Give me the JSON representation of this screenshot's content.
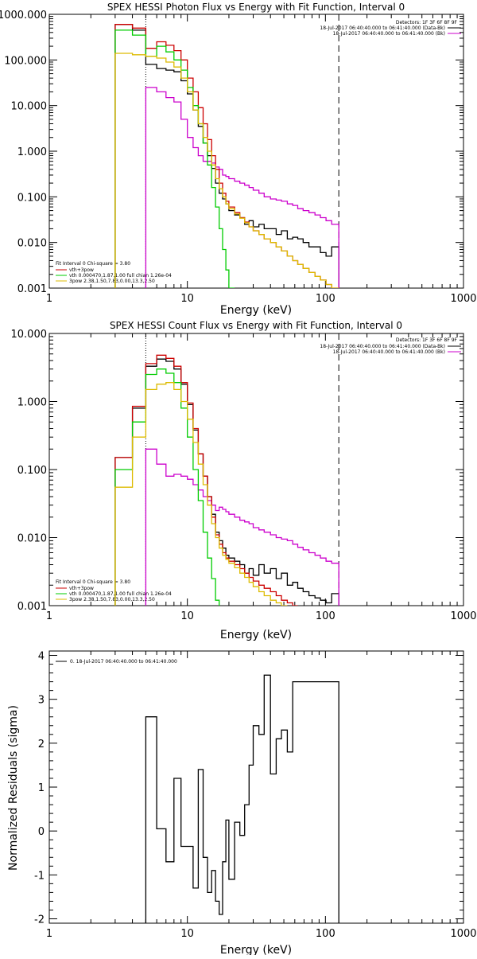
{
  "chart_data": [
    {
      "type": "line",
      "title": "SPEX HESSI Photon Flux vs Energy with Fit Function, Interval 0",
      "xlabel": "Energy (keV)",
      "ylabel": "",
      "xscale": "log",
      "yscale": "log",
      "xlim": [
        1,
        1000
      ],
      "ylim": [
        0.001,
        1000
      ],
      "x_ticks": [
        "1",
        "10",
        "100",
        "1000"
      ],
      "y_ticks": [
        "0.001",
        "0.010",
        "0.100",
        "1.000",
        "10.000",
        "100.000",
        "1000.000"
      ],
      "vlines": [
        {
          "x": 5,
          "style": "dotted"
        },
        {
          "x": 125,
          "style": "dashed"
        }
      ],
      "legend_top_right": [
        "Detectors: 1F 3F 6F 8F 9F",
        "18-Jul-2017 06:40:40.000 to 06:41:40.000 (Data-Bk)",
        "18-Jul-2017 06:40:40.000 to 06:41:40.000 (Bk)"
      ],
      "legend_bottom_left": [
        "Fit Interval 0   Chi-square = 3.80",
        "vth+3pow",
        "vth 0.000470,1.87,1.00  full chian 1.26e-04",
        "3pow 2.38,1.50,7.83,0.00,13.3,2.50"
      ],
      "bin_edges": [
        3,
        4,
        5,
        6,
        7,
        8,
        9,
        10,
        11,
        12,
        13,
        14,
        15,
        16,
        17,
        18,
        19,
        20,
        22,
        24,
        26,
        28,
        30,
        33,
        36,
        40,
        44,
        48,
        53,
        58,
        63,
        69,
        76,
        84,
        92,
        101,
        111,
        125
      ],
      "series": [
        {
          "name": "Data-Bk",
          "color": "#000000",
          "values": [
            600,
            450,
            80,
            65,
            60,
            55,
            35,
            18,
            8,
            3.5,
            1.5,
            0.8,
            0.42,
            0.2,
            0.12,
            0.09,
            0.07,
            0.05,
            0.04,
            0.035,
            0.025,
            0.03,
            0.022,
            0.025,
            0.02,
            0.02,
            0.015,
            0.018,
            0.012,
            0.013,
            0.012,
            0.01,
            0.008,
            0.008,
            0.006,
            0.005,
            0.008
          ]
        },
        {
          "name": "Bk",
          "color": "#cc00cc",
          "values": [
            null,
            null,
            25,
            20,
            15,
            12,
            5,
            2,
            1.2,
            0.8,
            0.6,
            0.6,
            0.55,
            0.45,
            0.4,
            0.3,
            0.28,
            0.25,
            0.22,
            0.2,
            0.18,
            0.16,
            0.14,
            0.12,
            0.1,
            0.09,
            0.085,
            0.08,
            0.07,
            0.065,
            0.055,
            0.05,
            0.045,
            0.04,
            0.035,
            0.03,
            0.025
          ]
        },
        {
          "name": "vth+3pow",
          "color": "#cc0000",
          "values": [
            600,
            500,
            180,
            250,
            210,
            160,
            100,
            40,
            20,
            9,
            4,
            1.8,
            0.8,
            0.4,
            0.2,
            0.12,
            0.08,
            0.06,
            0.045,
            0.035,
            0.028,
            0.022,
            0.018,
            0.015,
            0.012,
            0.01,
            0.008,
            0.0065,
            0.005,
            0.004,
            0.0033,
            0.0027,
            0.0022,
            0.0018,
            0.0015,
            0.0012,
            0.001
          ]
        },
        {
          "name": "vth",
          "color": "#00cc00",
          "values": [
            450,
            350,
            120,
            200,
            150,
            100,
            60,
            25,
            10,
            4,
            1.5,
            0.5,
            0.16,
            0.06,
            0.02,
            0.007,
            0.0025,
            0.001,
            null,
            null,
            null,
            null,
            null,
            null,
            null,
            null,
            null,
            null,
            null,
            null,
            null,
            null,
            null,
            null,
            null,
            null,
            null
          ]
        },
        {
          "name": "3pow",
          "color": "#ddbb00",
          "values": [
            140,
            130,
            120,
            110,
            90,
            70,
            40,
            20,
            8,
            4,
            2,
            1,
            0.5,
            0.25,
            0.15,
            0.1,
            0.07,
            0.055,
            0.042,
            0.034,
            0.027,
            0.022,
            0.018,
            0.015,
            0.012,
            0.01,
            0.008,
            0.0065,
            0.005,
            0.004,
            0.0033,
            0.0027,
            0.0022,
            0.0018,
            0.0015,
            0.0012,
            0.001
          ]
        }
      ]
    },
    {
      "type": "line",
      "title": "SPEX HESSI Count Flux vs Energy with Fit Function, Interval 0",
      "xlabel": "Energy (keV)",
      "ylabel": "",
      "xscale": "log",
      "yscale": "log",
      "xlim": [
        1,
        1000
      ],
      "ylim": [
        0.001,
        10
      ],
      "x_ticks": [
        "1",
        "10",
        "100",
        "1000"
      ],
      "y_ticks": [
        "0.001",
        "0.010",
        "0.100",
        "1.000",
        "10.000"
      ],
      "vlines": [
        {
          "x": 5,
          "style": "dotted"
        },
        {
          "x": 125,
          "style": "dashed"
        }
      ],
      "legend_top_right": [
        "Detectors: 1F 3F 6F 8F 9F",
        "18-Jul-2017 06:40:40.000 to 06:41:40.000 (Data-Bk)",
        "18-Jul-2017 06:40:40.000 to 06:41:40.000 (Bk)"
      ],
      "legend_bottom_left": [
        "Fit Interval 0   Chi-square = 3.80",
        "vth+3pow",
        "vth 0.000470,1.87,1.00  full chian 1.26e-04",
        "3pow 2.38,1.50,7.83,0.00,13.3,2.50"
      ],
      "bin_edges": [
        3,
        4,
        5,
        6,
        7,
        8,
        9,
        10,
        11,
        12,
        13,
        14,
        15,
        16,
        17,
        18,
        19,
        20,
        22,
        24,
        26,
        28,
        30,
        33,
        36,
        40,
        44,
        48,
        53,
        58,
        63,
        69,
        76,
        84,
        92,
        101,
        111,
        125
      ],
      "series": [
        {
          "name": "Data-Bk",
          "color": "#000000",
          "values": [
            0.15,
            0.8,
            3.3,
            4.2,
            3.9,
            3.0,
            1.8,
            0.9,
            0.38,
            0.17,
            0.08,
            0.04,
            0.022,
            0.012,
            0.009,
            0.007,
            0.0055,
            0.005,
            0.0045,
            0.004,
            0.003,
            0.0035,
            0.0028,
            0.004,
            0.003,
            0.0035,
            0.0025,
            0.003,
            0.002,
            0.0022,
            0.0018,
            0.0016,
            0.0014,
            0.0013,
            0.0012,
            0.0011,
            0.0015
          ]
        },
        {
          "name": "Bk",
          "color": "#cc00cc",
          "values": [
            null,
            null,
            0.2,
            0.12,
            0.08,
            0.085,
            0.08,
            0.072,
            0.06,
            0.05,
            0.04,
            0.035,
            0.03,
            0.025,
            0.028,
            0.026,
            0.024,
            0.022,
            0.02,
            0.018,
            0.017,
            0.016,
            0.014,
            0.013,
            0.012,
            0.011,
            0.01,
            0.0095,
            0.009,
            0.008,
            0.0072,
            0.0066,
            0.006,
            0.0055,
            0.005,
            0.0045,
            0.0042
          ]
        },
        {
          "name": "vth+3pow",
          "color": "#cc0000",
          "values": [
            0.15,
            0.85,
            3.6,
            4.8,
            4.3,
            3.3,
            1.9,
            0.95,
            0.4,
            0.17,
            0.08,
            0.04,
            0.02,
            0.011,
            0.008,
            0.006,
            0.005,
            0.0045,
            0.004,
            0.0035,
            0.003,
            0.0026,
            0.0023,
            0.002,
            0.0018,
            0.0016,
            0.0014,
            0.0012,
            0.0011,
            0.001,
            null,
            null,
            null,
            null,
            null,
            null,
            null
          ]
        },
        {
          "name": "vth",
          "color": "#00cc00",
          "values": [
            0.1,
            0.5,
            2.5,
            3.0,
            2.6,
            1.9,
            0.8,
            0.3,
            0.1,
            0.035,
            0.012,
            0.005,
            0.0025,
            0.0012,
            null,
            null,
            null,
            null,
            null,
            null,
            null,
            null,
            null,
            null,
            null,
            null,
            null,
            null,
            null,
            null,
            null,
            null,
            null,
            null,
            null,
            null,
            null
          ]
        },
        {
          "name": "3pow",
          "color": "#ddbb00",
          "values": [
            0.055,
            0.3,
            1.5,
            1.8,
            1.9,
            1.5,
            1.0,
            0.55,
            0.25,
            0.12,
            0.06,
            0.03,
            0.016,
            0.01,
            0.007,
            0.0055,
            0.0048,
            0.0042,
            0.0036,
            0.003,
            0.0026,
            0.0022,
            0.0019,
            0.0016,
            0.0014,
            0.0012,
            0.0011,
            0.001,
            null,
            null,
            null,
            null,
            null,
            null,
            null,
            null,
            null
          ]
        }
      ]
    },
    {
      "type": "line",
      "title": "",
      "xlabel": "Energy (keV)",
      "ylabel": "Normalized Residuals (sigma)",
      "xscale": "log",
      "yscale": "linear",
      "xlim": [
        1,
        1000
      ],
      "ylim": [
        -2.1,
        4.1
      ],
      "x_ticks": [
        "1",
        "10",
        "100",
        "1000"
      ],
      "y_ticks": [
        "-2",
        "-1",
        "0",
        "1",
        "2",
        "3",
        "4"
      ],
      "legend_top_left": [
        "0. 18-Jul-2017 06:40:40.000 to 06:41:40.000"
      ],
      "bin_edges": [
        5,
        6,
        7,
        8,
        9,
        10,
        11,
        12,
        13,
        14,
        15,
        16,
        17,
        18,
        19,
        20,
        22,
        24,
        26,
        28,
        30,
        33,
        36,
        40,
        44,
        48,
        53,
        58,
        63,
        69,
        76,
        84,
        92,
        101,
        111,
        125
      ],
      "series": [
        {
          "name": "0. 18-Jul-2017 06:40:40.000 to 06:41:40.000",
          "color": "#000000",
          "values": [
            2.6,
            0.05,
            -0.7,
            1.2,
            -0.35,
            -0.35,
            -1.3,
            1.4,
            -0.6,
            -1.4,
            -0.9,
            -1.6,
            -1.9,
            -0.7,
            0.25,
            -1.1,
            0.2,
            -0.1,
            0.6,
            1.5,
            2.4,
            2.2,
            3.55,
            1.3,
            2.1,
            2.3,
            1.8,
            3.4,
            3.4,
            3.4,
            3.4,
            3.4,
            3.4,
            3.4,
            3.4
          ]
        }
      ]
    }
  ]
}
